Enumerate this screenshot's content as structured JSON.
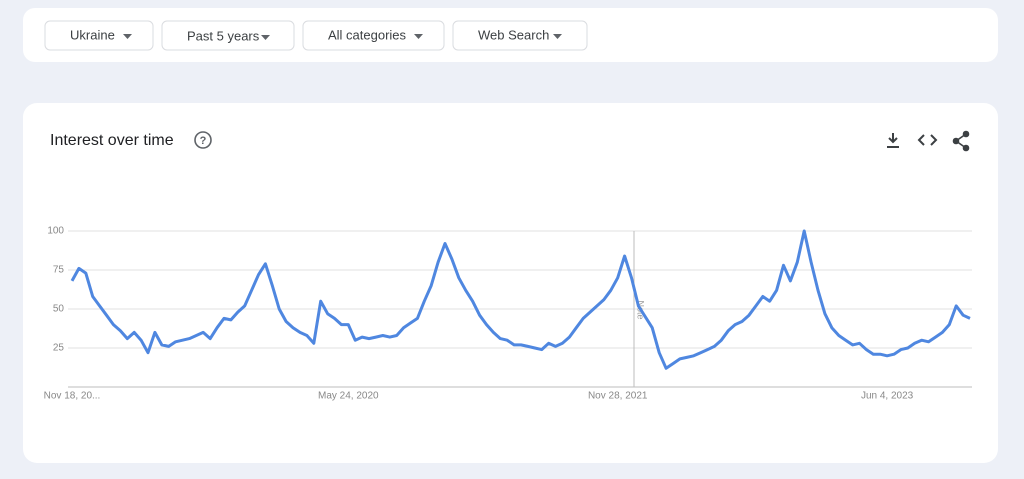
{
  "filters": [
    "Ukraine",
    "Past 5 years",
    "All categories",
    "Web Search"
  ],
  "chart_data": {
    "type": "line",
    "title": "Interest over time",
    "note": "Note",
    "categories": [
      "Nov 18, 20...",
      null,
      null,
      null,
      null,
      null,
      null,
      null,
      null,
      null,
      null,
      null,
      null,
      null,
      null,
      null,
      null,
      null,
      null,
      null,
      null,
      null,
      null,
      null,
      null,
      null,
      null,
      null,
      null,
      null,
      null,
      null,
      null,
      null,
      null,
      null,
      null,
      null,
      null,
      null,
      "May 24, 2020",
      null,
      null,
      null,
      null,
      null,
      null,
      null,
      null,
      null,
      null,
      null,
      null,
      null,
      null,
      null,
      null,
      null,
      null,
      null,
      null,
      null,
      null,
      null,
      null,
      null,
      null,
      null,
      null,
      null,
      null,
      null,
      null,
      null,
      null,
      null,
      null,
      null,
      null,
      "Nov 28, 2021",
      null,
      null,
      null,
      null,
      null,
      null,
      null,
      null,
      null,
      null,
      null,
      null,
      null,
      null,
      null,
      null,
      null,
      null,
      null,
      null,
      null,
      null,
      null,
      null,
      null,
      null,
      null,
      null,
      null,
      null,
      null,
      null,
      null,
      null,
      null,
      null,
      null,
      null,
      "Jun 4, 2023",
      null,
      null,
      null,
      null,
      null,
      null,
      null,
      null,
      null,
      null,
      null,
      null
    ],
    "series": [
      {
        "name": "Ukraine",
        "color": "#4f87e0",
        "values": [
          68,
          76,
          73,
          58,
          52,
          46,
          40,
          36,
          31,
          35,
          30,
          22,
          35,
          27,
          26,
          29,
          30,
          31,
          33,
          35,
          31,
          38,
          44,
          43,
          48,
          52,
          62,
          72,
          79,
          65,
          50,
          42,
          38,
          35,
          33,
          28,
          55,
          47,
          44,
          40,
          40,
          30,
          32,
          31,
          32,
          33,
          32,
          33,
          38,
          41,
          44,
          55,
          65,
          80,
          92,
          82,
          70,
          62,
          55,
          46,
          40,
          35,
          31,
          30,
          27,
          27,
          26,
          25,
          24,
          28,
          26,
          28,
          32,
          38,
          44,
          48,
          52,
          56,
          62,
          70,
          84,
          70,
          52,
          45,
          38,
          22,
          12,
          15,
          18,
          19,
          20,
          22,
          24,
          26,
          30,
          36,
          40,
          42,
          46,
          52,
          58,
          55,
          62,
          78,
          68,
          80,
          100,
          80,
          62,
          47,
          38,
          33,
          30,
          27,
          28,
          24,
          21,
          21,
          20,
          21,
          24,
          25,
          28,
          30,
          29,
          32,
          35,
          40,
          52,
          46,
          44
        ]
      }
    ],
    "ylim": [
      0,
      100
    ],
    "yticks": [
      25,
      50,
      75,
      100
    ],
    "grid": true
  }
}
